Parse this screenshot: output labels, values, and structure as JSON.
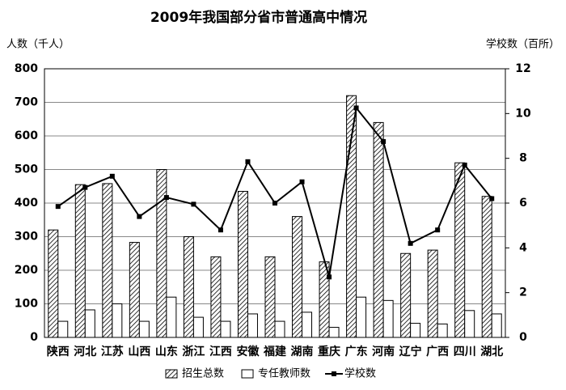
{
  "chart_data": {
    "type": "bar_line",
    "title": "2009年我国部分省市普通高中情况",
    "y_label": "人数（千人）",
    "y2_label": "学校数（百所）",
    "categories": [
      "陕西",
      "河北",
      "江苏",
      "山西",
      "山东",
      "浙江",
      "江西",
      "安徽",
      "福建",
      "湖南",
      "重庆",
      "广东",
      "河南",
      "辽宁",
      "广西",
      "四川",
      "湖北"
    ],
    "series": [
      {
        "name": "招生总数",
        "type": "bar",
        "color": "#000000",
        "pattern": "hatch",
        "values": [
          320,
          455,
          458,
          283,
          500,
          300,
          240,
          435,
          240,
          360,
          225,
          720,
          640,
          250,
          260,
          520,
          420
        ]
      },
      {
        "name": "专任教师数",
        "type": "bar",
        "color": "#ffffff",
        "values": [
          48,
          82,
          100,
          48,
          120,
          60,
          48,
          70,
          48,
          75,
          30,
          120,
          110,
          42,
          40,
          80,
          70
        ]
      },
      {
        "name": "学校数",
        "type": "line",
        "axis": "y2",
        "color": "#000000",
        "values": [
          5.85,
          6.7,
          7.2,
          5.4,
          6.25,
          5.95,
          4.8,
          7.85,
          6.0,
          6.95,
          2.7,
          10.25,
          8.75,
          4.2,
          4.8,
          7.7,
          6.2
        ]
      }
    ],
    "ylim": [
      0,
      800
    ],
    "yticks": [
      0,
      100,
      200,
      300,
      400,
      500,
      600,
      700,
      800
    ],
    "y2lim": [
      0,
      12
    ],
    "y2ticks": [
      0,
      2,
      4,
      6,
      8,
      10,
      12
    ],
    "grid": true
  }
}
